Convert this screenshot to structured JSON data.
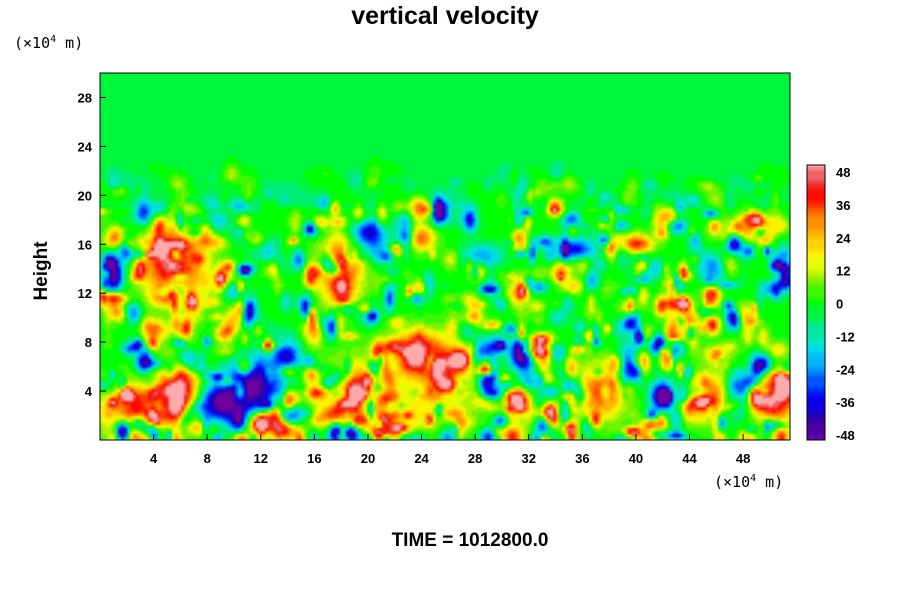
{
  "chart_data": {
    "type": "heatmap",
    "title": "vertical velocity",
    "ylabel": "Height",
    "x_unit_prefix": "(×10",
    "x_unit_exp": "4",
    "x_unit_suffix": " m)",
    "y_unit_prefix": "(×10",
    "y_unit_exp": "4",
    "y_unit_suffix": " m)",
    "xlim": [
      0,
      51.5
    ],
    "ylim": [
      0,
      30
    ],
    "x_ticks": [
      "4",
      "8",
      "12",
      "16",
      "20",
      "24",
      "28",
      "32",
      "36",
      "40",
      "44",
      "48"
    ],
    "y_ticks": [
      "4",
      "8",
      "12",
      "16",
      "20",
      "24",
      "28"
    ],
    "colorbar": {
      "range": [
        -48,
        48
      ],
      "ticks": [
        "48",
        "36",
        "24",
        "12",
        "0",
        "-12",
        "-24",
        "-36",
        "-48"
      ]
    },
    "features": [
      {
        "x": 5.5,
        "y": 14.5,
        "value": 48,
        "rx": 2.2,
        "ry": 3.0
      },
      {
        "x": 18.0,
        "y": 14.0,
        "value": 44,
        "rx": 1.6,
        "ry": 3.0
      },
      {
        "x": 23.5,
        "y": 7.0,
        "value": 46,
        "rx": 2.0,
        "ry": 1.8
      },
      {
        "x": 6.0,
        "y": 4.5,
        "value": 44,
        "rx": 1.3,
        "ry": 2.5
      },
      {
        "x": 3.0,
        "y": 2.5,
        "value": 36,
        "rx": 3.0,
        "ry": 2.2
      },
      {
        "x": 12.0,
        "y": 1.2,
        "value": 36,
        "rx": 1.0,
        "ry": 1.0
      },
      {
        "x": 19.0,
        "y": 4.0,
        "value": 30,
        "rx": 2.5,
        "ry": 2.6
      },
      {
        "x": 26.0,
        "y": 5.5,
        "value": 30,
        "rx": 2.0,
        "ry": 2.5
      },
      {
        "x": 37.5,
        "y": 4.0,
        "value": 34,
        "rx": 1.8,
        "ry": 2.3
      },
      {
        "x": 45.0,
        "y": 3.5,
        "value": 38,
        "rx": 2.2,
        "ry": 1.8
      },
      {
        "x": 50.5,
        "y": 3.2,
        "value": 40,
        "rx": 1.5,
        "ry": 2.0
      },
      {
        "x": 33.0,
        "y": 2.5,
        "value": 16,
        "rx": 3.0,
        "ry": 2.0
      },
      {
        "x": 22.5,
        "y": 2.0,
        "value": 18,
        "rx": 3.0,
        "ry": 2.0
      },
      {
        "x": 11.5,
        "y": 4.5,
        "value": -48,
        "rx": 2.0,
        "ry": 2.5
      },
      {
        "x": 9.0,
        "y": 3.0,
        "value": -46,
        "rx": 1.6,
        "ry": 1.6
      },
      {
        "x": 14.0,
        "y": 7.0,
        "value": -36,
        "rx": 1.0,
        "ry": 1.4
      },
      {
        "x": 29.0,
        "y": 7.0,
        "value": -40,
        "rx": 1.5,
        "ry": 1.2
      },
      {
        "x": 32.0,
        "y": 5.0,
        "value": -32,
        "rx": 0.8,
        "ry": 1.2
      },
      {
        "x": 39.5,
        "y": 6.0,
        "value": -44,
        "rx": 1.0,
        "ry": 1.5
      },
      {
        "x": 42.0,
        "y": 3.5,
        "value": -48,
        "rx": 0.9,
        "ry": 1.6
      },
      {
        "x": 47.5,
        "y": 3.5,
        "value": -48,
        "rx": 0.8,
        "ry": 1.5
      },
      {
        "x": 1.0,
        "y": 13.5,
        "value": -48,
        "rx": 0.7,
        "ry": 1.5
      },
      {
        "x": 12.5,
        "y": 14.5,
        "value": -40,
        "rx": 1.0,
        "ry": 1.5
      },
      {
        "x": 20.0,
        "y": 17.0,
        "value": -40,
        "rx": 1.5,
        "ry": 1.5
      },
      {
        "x": 35.5,
        "y": 15.5,
        "value": -36,
        "rx": 1.5,
        "ry": 1.0
      },
      {
        "x": 51.0,
        "y": 14.0,
        "value": -48,
        "rx": 0.6,
        "ry": 1.5
      },
      {
        "x": 46.0,
        "y": 14.5,
        "value": -24,
        "rx": 1.5,
        "ry": 1.0
      },
      {
        "x": 28.5,
        "y": 15.0,
        "value": -24,
        "rx": 1.5,
        "ry": 1.0
      },
      {
        "x": 24.0,
        "y": 16.5,
        "value": 32,
        "rx": 1.0,
        "ry": 1.0
      },
      {
        "x": 34.0,
        "y": 19.0,
        "value": 30,
        "rx": 0.6,
        "ry": 0.7
      },
      {
        "x": 40.0,
        "y": 16.0,
        "value": 40,
        "rx": 1.2,
        "ry": 0.8
      },
      {
        "x": 31.5,
        "y": 12.0,
        "value": 30,
        "rx": 0.6,
        "ry": 1.5
      },
      {
        "x": 48.0,
        "y": 10.0,
        "value": 28,
        "rx": 0.6,
        "ry": 1.0
      },
      {
        "x": 4.0,
        "y": 9.0,
        "value": 30,
        "rx": 1.0,
        "ry": 0.8
      },
      {
        "x": 16.0,
        "y": 9.0,
        "value": 28,
        "rx": 0.8,
        "ry": 1.2
      }
    ]
  },
  "time_label": "TIME = 1012800.0"
}
